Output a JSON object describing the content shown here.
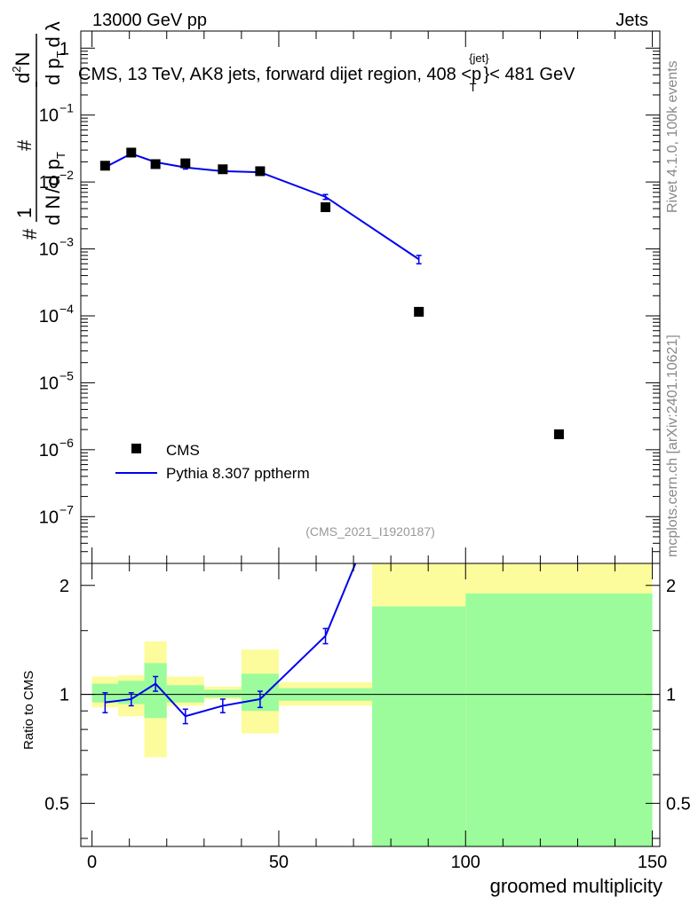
{
  "header": {
    "left": "13000 GeV pp",
    "right": "Jets"
  },
  "plot_title": {
    "prefix": "CMS, 13 TeV, AK8 jets, forward dijet region, 408 <p",
    "sup": "{jet}",
    "sub": "T",
    "suffix": "}< 481 GeV"
  },
  "y_label_main": {
    "frac_one": "1",
    "hash": "#",
    "dN": "d N",
    "dpT": "d p",
    "sub_T": "T",
    "slash": "/",
    "d2N": "d",
    "sup_2": "2",
    "N": "N",
    "dpTdl": "d p",
    "lambda": "d λ"
  },
  "side_labels": {
    "rivet": "Rivet 4.1.0,  100k events",
    "mcplots": "mcplots.cern.ch [arXiv:2401.10621]"
  },
  "analysis_id": "(CMS_2021_I1920187)",
  "legend": {
    "data_label": "CMS",
    "mc_label": "Pythia 8.307 pptherm"
  },
  "ratio_ylabel": "Ratio to CMS",
  "xlabel": "groomed multiplicity",
  "colors": {
    "data": "#000000",
    "mc": "#0000ee",
    "band_inner": "#9cfc9c",
    "band_outer": "#fcfc9c"
  },
  "chart_data": {
    "type": "line",
    "title": "CMS, 13 TeV, AK8 jets, forward dijet region, 408 < pT(jet) < 481 GeV",
    "xlabel": "groomed multiplicity",
    "ylabel": "1/N dN/dλ (normalized)",
    "xlim": [
      -3,
      152
    ],
    "ylog": true,
    "ylim_main": [
      2e-08,
      1.8
    ],
    "ylim_ratio": [
      0.38,
      2.3
    ],
    "main_yticks": [
      {
        "v": 1,
        "base": "1",
        "exp": ""
      },
      {
        "v": 0.1,
        "base": "10",
        "exp": "−1"
      },
      {
        "v": 0.01,
        "base": "10",
        "exp": "−2"
      },
      {
        "v": 0.001,
        "base": "10",
        "exp": "−3"
      },
      {
        "v": 0.0001,
        "base": "10",
        "exp": "−4"
      },
      {
        "v": 1e-05,
        "base": "10",
        "exp": "−5"
      },
      {
        "v": 1e-06,
        "base": "10",
        "exp": "−6"
      },
      {
        "v": 1e-07,
        "base": "10",
        "exp": "−7"
      }
    ],
    "ratio_yticks": [
      {
        "v": 0.5,
        "label": "0.5"
      },
      {
        "v": 1,
        "label": "1"
      },
      {
        "v": 2,
        "label": "2"
      }
    ],
    "xticks": [
      {
        "v": 0,
        "label": "0"
      },
      {
        "v": 50,
        "label": "50"
      },
      {
        "v": 100,
        "label": "100"
      },
      {
        "v": 150,
        "label": "150"
      }
    ],
    "bins": [
      {
        "lo": 0,
        "hi": 7,
        "data": 0.0175,
        "mc": 0.0166,
        "mc_err": 0.0012,
        "ratio": 0.95,
        "ratio_err": 0.06,
        "band_in": [
          0.95,
          1.07
        ],
        "band_out": [
          0.92,
          1.12
        ]
      },
      {
        "lo": 7,
        "hi": 14,
        "data": 0.0275,
        "mc": 0.0265,
        "mc_err": 0.0012,
        "ratio": 0.97,
        "ratio_err": 0.04,
        "band_in": [
          0.94,
          1.09
        ],
        "band_out": [
          0.87,
          1.13
        ]
      },
      {
        "lo": 14,
        "hi": 20,
        "data": 0.0185,
        "mc": 0.0198,
        "mc_err": 0.0012,
        "ratio": 1.07,
        "ratio_err": 0.05,
        "band_in": [
          0.86,
          1.22
        ],
        "band_out": [
          0.67,
          1.4
        ]
      },
      {
        "lo": 20,
        "hi": 30,
        "data": 0.019,
        "mc": 0.0165,
        "mc_err": 0.0009,
        "ratio": 0.87,
        "ratio_err": 0.04,
        "band_in": [
          0.95,
          1.06
        ],
        "band_out": [
          0.93,
          1.12
        ]
      },
      {
        "lo": 30,
        "hi": 40,
        "data": 0.0155,
        "mc": 0.0145,
        "mc_err": 0.0008,
        "ratio": 0.93,
        "ratio_err": 0.04,
        "band_in": [
          0.98,
          1.03
        ],
        "band_out": [
          0.97,
          1.05
        ]
      },
      {
        "lo": 40,
        "hi": 50,
        "data": 0.0145,
        "mc": 0.014,
        "mc_err": 0.0008,
        "ratio": 0.97,
        "ratio_err": 0.05,
        "band_in": [
          0.9,
          1.14
        ],
        "band_out": [
          0.78,
          1.33
        ]
      },
      {
        "lo": 50,
        "hi": 75,
        "data": 0.0042,
        "mc": 0.006,
        "mc_err": 0.0005,
        "ratio": 1.45,
        "ratio_err": 0.07,
        "band_in": [
          0.96,
          1.04
        ],
        "band_out": [
          0.93,
          1.08
        ]
      },
      {
        "lo": 75,
        "hi": 100,
        "data": 0.000115,
        "mc": 0.0007,
        "mc_err": 0.0001,
        "ratio": 6.1,
        "ratio_err": 0.9,
        "band_in": [
          0.38,
          1.75
        ],
        "band_out": [
          0.38,
          2.3
        ]
      },
      {
        "lo": 100,
        "hi": 150,
        "data": 1.7e-06,
        "mc": null,
        "mc_err": null,
        "ratio": null,
        "ratio_err": null,
        "band_in": [
          0.38,
          1.9
        ],
        "band_out": [
          0.38,
          2.3
        ]
      }
    ]
  }
}
